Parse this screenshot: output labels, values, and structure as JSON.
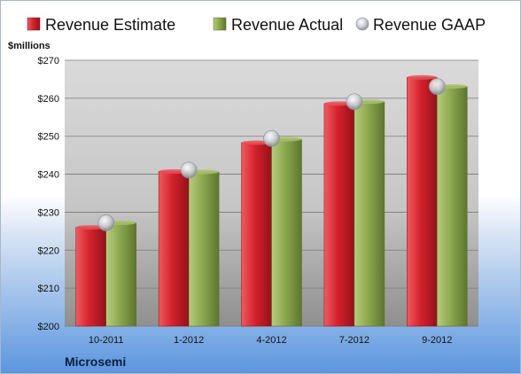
{
  "chart_data": {
    "type": "bar",
    "categories": [
      "10-2011",
      "1-2012",
      "4-2012",
      "7-2012",
      "9-2012"
    ],
    "series": [
      {
        "name": "Revenue Estimate",
        "values": [
          226,
          240.7,
          248.3,
          258.6,
          265.5
        ],
        "color": "#c8202b"
      },
      {
        "name": "Revenue Actual",
        "values": [
          227.2,
          240.6,
          249.2,
          259.1,
          263.1
        ],
        "color": "#8aa64a"
      },
      {
        "name": "Revenue GAAP",
        "values": [
          227.2,
          241.1,
          249.4,
          259.1,
          263.1
        ],
        "color": "#c0c4cc",
        "marker": "circle"
      }
    ],
    "ylim": [
      200,
      270
    ],
    "yticks": [
      "$200",
      "$210",
      "$220",
      "$230",
      "$240",
      "$250",
      "$260",
      "$270"
    ],
    "ytick_values": [
      200,
      210,
      220,
      230,
      240,
      250,
      260,
      270
    ],
    "unit_label": "$millions",
    "company": "Microsemi",
    "legend_position": "top",
    "grid": true
  }
}
